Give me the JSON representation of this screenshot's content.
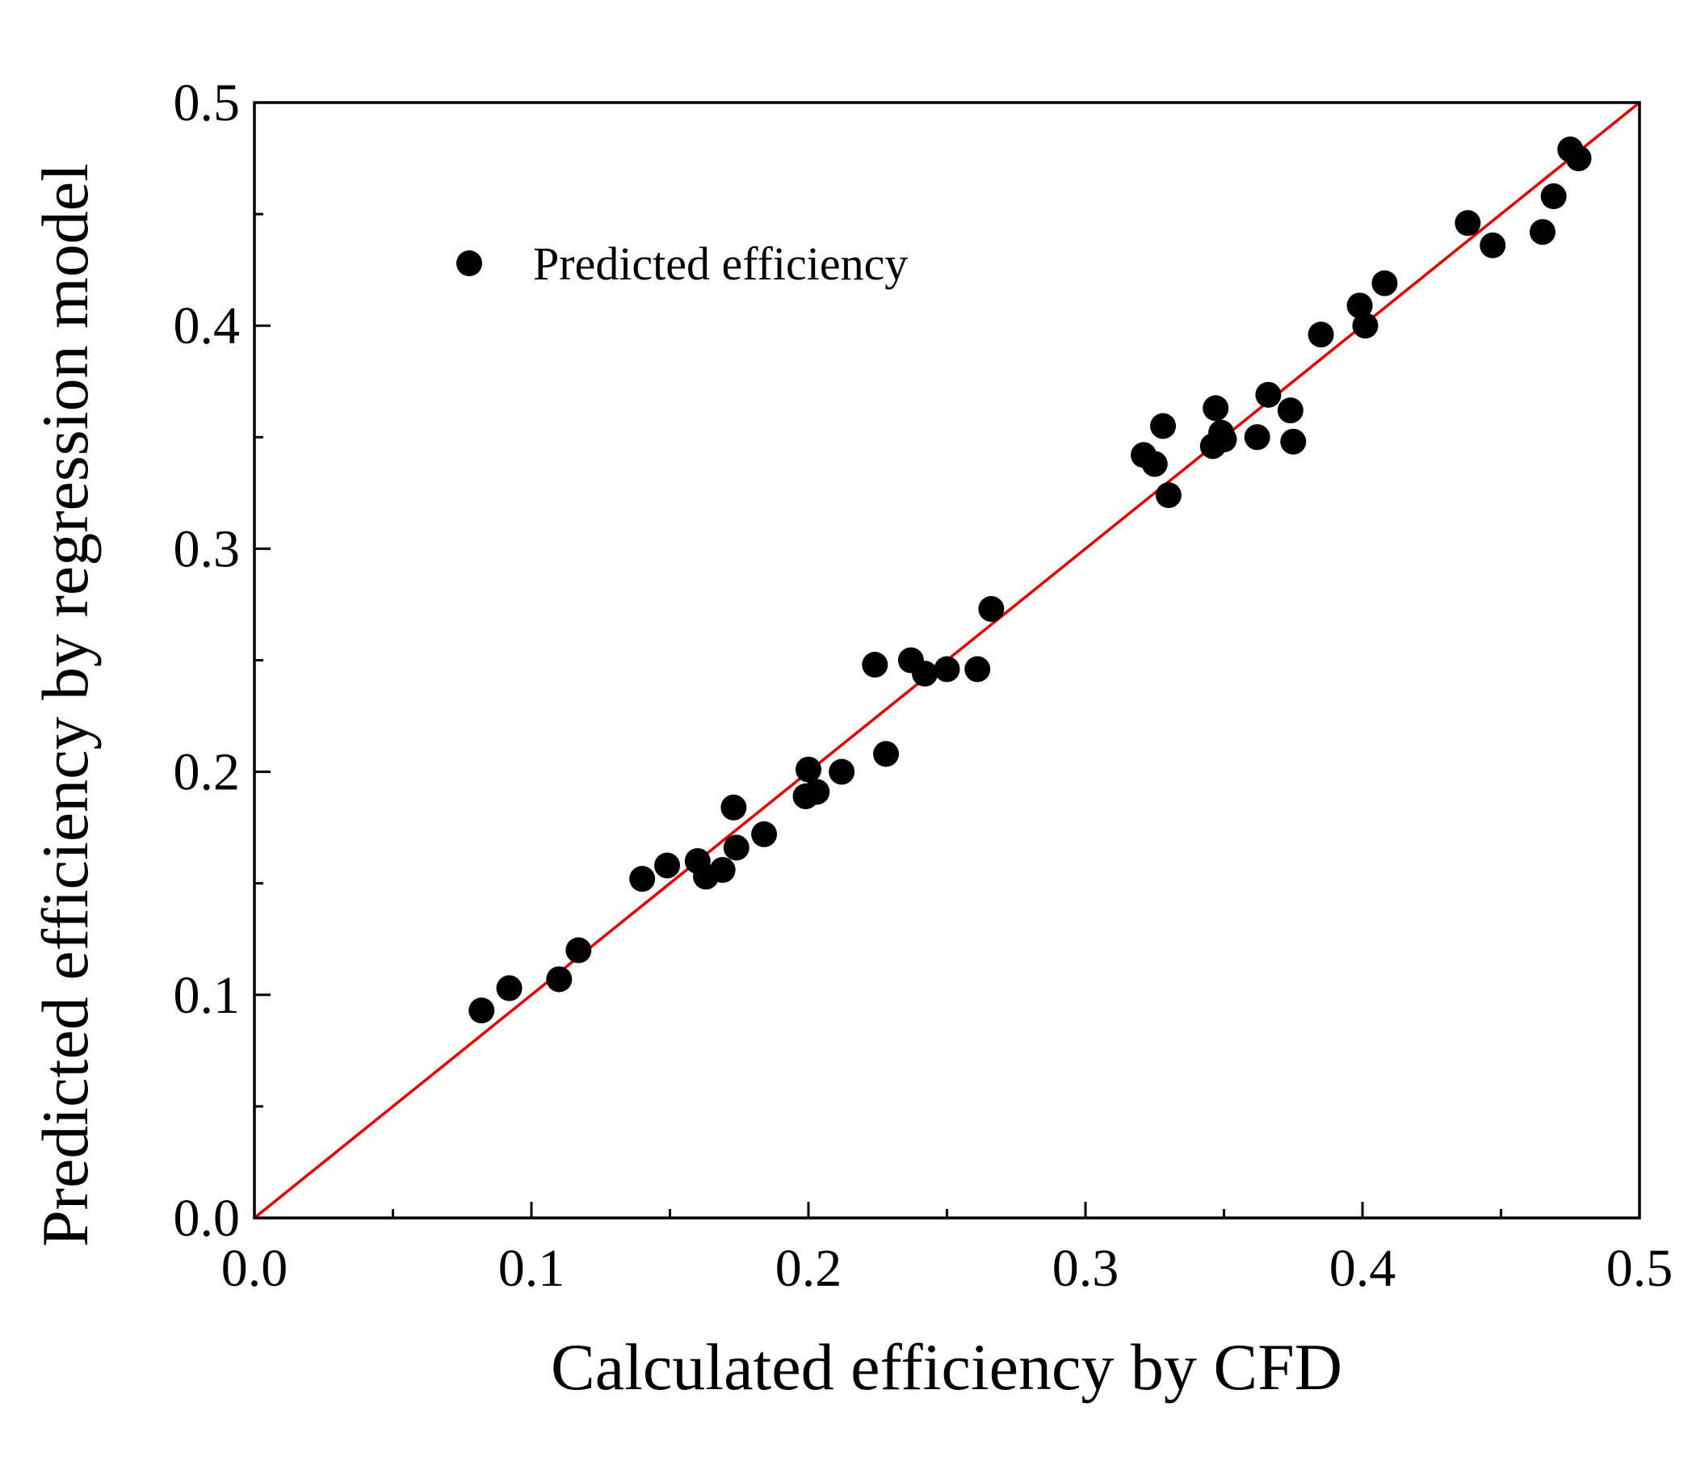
{
  "chart_data": {
    "type": "scatter",
    "xlabel": "Calculated efficiency by CFD",
    "ylabel": "Predicted efficiency by regression model",
    "xlim": [
      0.0,
      0.5
    ],
    "ylim": [
      0.0,
      0.5
    ],
    "x_ticks": [
      "0.0",
      "0.1",
      "0.2",
      "0.3",
      "0.4",
      "0.5"
    ],
    "y_ticks": [
      "0.0",
      "0.1",
      "0.2",
      "0.3",
      "0.4",
      "0.5"
    ],
    "minor_ticks": [
      0.05,
      0.15,
      0.25,
      0.35,
      0.45
    ],
    "grid": false,
    "legend_position": "top-left",
    "reference_line": {
      "from": [
        0,
        0
      ],
      "to": [
        0.5,
        0.5
      ],
      "color": "#e00000"
    },
    "series": [
      {
        "name": "Predicted efficiency",
        "color": "#000000",
        "marker": "circle",
        "points": [
          [
            0.082,
            0.093
          ],
          [
            0.092,
            0.103
          ],
          [
            0.11,
            0.107
          ],
          [
            0.117,
            0.12
          ],
          [
            0.14,
            0.152
          ],
          [
            0.149,
            0.158
          ],
          [
            0.16,
            0.16
          ],
          [
            0.163,
            0.153
          ],
          [
            0.169,
            0.156
          ],
          [
            0.173,
            0.184
          ],
          [
            0.174,
            0.166
          ],
          [
            0.184,
            0.172
          ],
          [
            0.199,
            0.189
          ],
          [
            0.2,
            0.201
          ],
          [
            0.203,
            0.191
          ],
          [
            0.212,
            0.2
          ],
          [
            0.224,
            0.248
          ],
          [
            0.228,
            0.208
          ],
          [
            0.237,
            0.25
          ],
          [
            0.242,
            0.244
          ],
          [
            0.25,
            0.246
          ],
          [
            0.261,
            0.246
          ],
          [
            0.266,
            0.273
          ],
          [
            0.321,
            0.342
          ],
          [
            0.325,
            0.338
          ],
          [
            0.328,
            0.355
          ],
          [
            0.33,
            0.324
          ],
          [
            0.346,
            0.346
          ],
          [
            0.347,
            0.363
          ],
          [
            0.349,
            0.352
          ],
          [
            0.35,
            0.349
          ],
          [
            0.362,
            0.35
          ],
          [
            0.366,
            0.369
          ],
          [
            0.374,
            0.362
          ],
          [
            0.375,
            0.348
          ],
          [
            0.385,
            0.396
          ],
          [
            0.399,
            0.409
          ],
          [
            0.401,
            0.4
          ],
          [
            0.408,
            0.419
          ],
          [
            0.438,
            0.446
          ],
          [
            0.447,
            0.436
          ],
          [
            0.465,
            0.442
          ],
          [
            0.469,
            0.458
          ],
          [
            0.475,
            0.479
          ],
          [
            0.478,
            0.475
          ]
        ]
      }
    ]
  }
}
